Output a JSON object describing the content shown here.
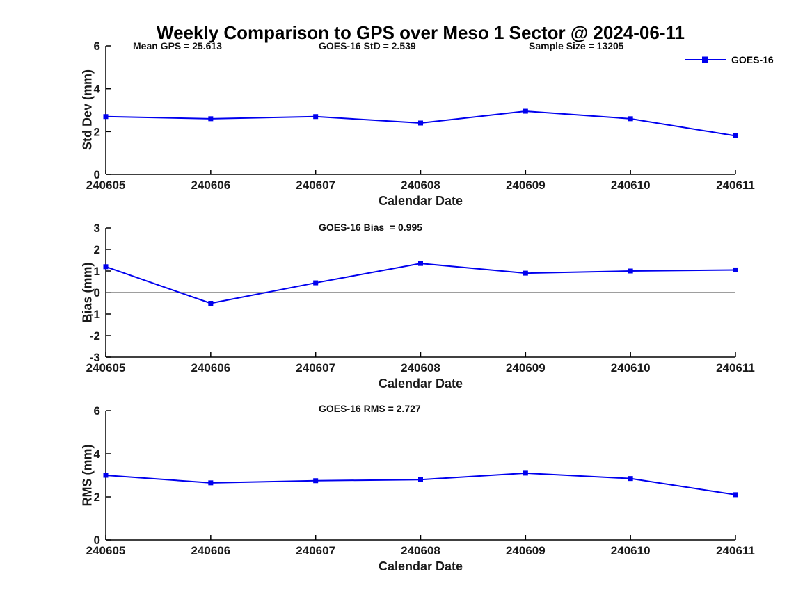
{
  "colors": {
    "line": "#0000EE",
    "zero_line": "#7F7F7F",
    "axis": "#000000",
    "text": "#000000",
    "background": "#FFFFFF"
  },
  "chart_data": [
    {
      "type": "line",
      "title": "Weekly Comparison to GPS over Meso 1 Sector @ 2024-06-11",
      "xlabel": "Calendar Date",
      "ylabel": "Std Dev (mm)",
      "x_categories": [
        "240605",
        "240606",
        "240607",
        "240608",
        "240609",
        "240610",
        "240611"
      ],
      "series": [
        {
          "name": "GOES-16",
          "values": [
            2.7,
            2.6,
            2.7,
            2.4,
            2.95,
            2.6,
            1.8
          ],
          "marker": "square"
        }
      ],
      "ylim": [
        0,
        6
      ],
      "yticks": [
        0,
        2,
        4,
        6
      ],
      "annotations": [
        "Mean GPS = 25.613",
        "GOES-16 StD = 2.539",
        "Sample Size = 13205"
      ],
      "legend": {
        "position": "northeast",
        "entries": [
          "GOES-16"
        ]
      },
      "grid": false,
      "zero_line": false
    },
    {
      "type": "line",
      "title": "",
      "xlabel": "Calendar Date",
      "ylabel": "Bias (mm)",
      "x_categories": [
        "240605",
        "240606",
        "240607",
        "240608",
        "240609",
        "240610",
        "240611"
      ],
      "series": [
        {
          "name": "GOES-16",
          "values": [
            1.2,
            -0.5,
            0.45,
            1.35,
            0.9,
            1.0,
            1.05
          ],
          "marker": "square"
        }
      ],
      "ylim": [
        -3,
        3
      ],
      "yticks": [
        -3,
        -2,
        -1,
        0,
        1,
        2,
        3
      ],
      "annotations": [
        "GOES-16 Bias  = 0.995"
      ],
      "grid": false,
      "zero_line": true
    },
    {
      "type": "line",
      "title": "",
      "xlabel": "Calendar Date",
      "ylabel": "RMS (mm)",
      "x_categories": [
        "240605",
        "240606",
        "240607",
        "240608",
        "240609",
        "240610",
        "240611"
      ],
      "series": [
        {
          "name": "GOES-16",
          "values": [
            3.0,
            2.65,
            2.75,
            2.8,
            3.1,
            2.85,
            2.1
          ],
          "marker": "square"
        }
      ],
      "ylim": [
        0,
        6
      ],
      "yticks": [
        0,
        2,
        4,
        6
      ],
      "annotations": [
        "GOES-16 RMS = 2.727"
      ],
      "grid": false,
      "zero_line": false
    }
  ]
}
